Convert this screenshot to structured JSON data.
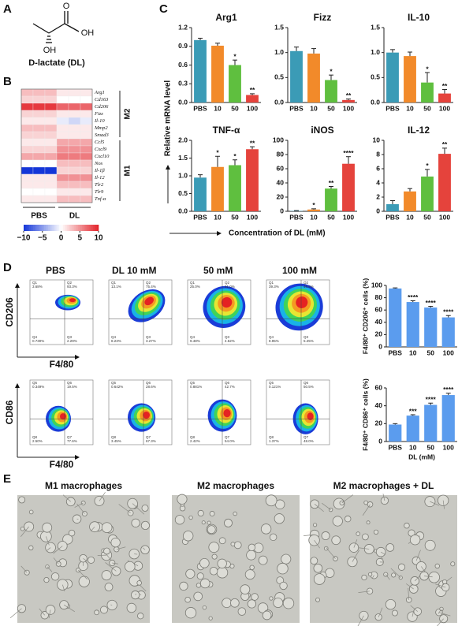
{
  "panel_labels": [
    "A",
    "B",
    "C",
    "D",
    "E"
  ],
  "panel_a": {
    "atoms": [
      "O",
      "OH",
      "OH"
    ],
    "caption": "D-lactate (DL)"
  },
  "panel_b": {
    "clim": [
      -10,
      10
    ],
    "cticks": [
      {
        "value": -10,
        "label": "−10"
      },
      {
        "value": -5,
        "label": "−5"
      },
      0,
      5,
      10
    ],
    "colors": {
      "low": "#1436d8",
      "mid": "#ffffff",
      "high": "#e3232a"
    },
    "columns": [
      "PBS",
      "DL"
    ],
    "groups": [
      {
        "name": "M2",
        "color": "#a8309a",
        "genes": [
          {
            "name": "Arg1",
            "values": [
              3,
              3,
              3,
              1,
              1,
              1
            ]
          },
          {
            "name": "Cd163",
            "values": [
              2,
              2,
              2,
              0,
              0,
              0
            ]
          },
          {
            "name": "Cd206",
            "values": [
              9,
              9,
              9,
              7,
              7,
              7
            ]
          },
          {
            "name": "Fizz",
            "values": [
              2,
              2,
              2,
              1,
              1,
              1
            ]
          },
          {
            "name": "Il-10",
            "values": [
              1,
              1,
              1,
              -1,
              -2,
              -1
            ]
          },
          {
            "name": "Mmp2",
            "values": [
              3,
              3,
              3,
              1,
              1,
              1
            ]
          },
          {
            "name": "Smad3",
            "values": [
              2,
              2,
              2,
              1,
              1,
              1
            ]
          }
        ]
      },
      {
        "name": "M1",
        "color": "#2e9a3a",
        "genes": [
          {
            "name": "Ccl5",
            "values": [
              1,
              1,
              1,
              4,
              4,
              4
            ]
          },
          {
            "name": "Cxcl9",
            "values": [
              2,
              2,
              2,
              5,
              5,
              5
            ]
          },
          {
            "name": "Cxcl10",
            "values": [
              4,
              4,
              4,
              6,
              6,
              6
            ]
          },
          {
            "name": "Nos",
            "values": [
              0,
              0,
              0,
              3,
              3,
              3
            ]
          },
          {
            "name": "Il-1β",
            "values": [
              -10,
              -10,
              -10,
              2,
              2,
              2
            ]
          },
          {
            "name": "Il-12",
            "values": [
              1,
              1,
              1,
              5,
              5,
              5
            ]
          },
          {
            "name": "Tlr2",
            "values": [
              1,
              1,
              1,
              3,
              3,
              3
            ]
          },
          {
            "name": "Tlr9",
            "values": [
              0,
              0,
              0,
              1,
              1,
              1
            ]
          },
          {
            "name": "Tnf-α",
            "values": [
              1,
              1,
              1,
              3,
              3,
              3
            ]
          }
        ]
      }
    ]
  },
  "panel_c": {
    "y_label": "Relative mRNA level",
    "x_label": "Concentration of DL (mM)"
  },
  "chart_data": [
    {
      "type": "bar",
      "title": "Arg1",
      "categories": [
        "PBS",
        "10",
        "50",
        "100"
      ],
      "colors": [
        "#3b9bb6",
        "#f28a2a",
        "#5fbf3f",
        "#e5433c"
      ],
      "values": [
        1.0,
        0.91,
        0.6,
        0.12
      ],
      "errors": [
        0.03,
        0.04,
        0.08,
        0.02
      ],
      "significance": [
        null,
        null,
        "*",
        "**"
      ],
      "ylim": [
        0,
        1.2
      ],
      "yticks": [
        {
          "value": 0,
          "label": "0.0"
        },
        0.3,
        0.6,
        0.9,
        1.2
      ]
    },
    {
      "type": "bar",
      "title": "Fizz",
      "categories": [
        "PBS",
        "10",
        "50",
        "100"
      ],
      "colors": [
        "#3b9bb6",
        "#f28a2a",
        "#5fbf3f",
        "#e5433c"
      ],
      "values": [
        1.03,
        0.98,
        0.45,
        0.05
      ],
      "errors": [
        0.08,
        0.1,
        0.1,
        0.02
      ],
      "significance": [
        null,
        null,
        "*",
        "**"
      ],
      "ylim": [
        0,
        1.5
      ],
      "yticks": [
        {
          "value": 0,
          "label": "0.0"
        },
        0.5,
        {
          "value": 1,
          "label": "1.0"
        },
        1.5
      ]
    },
    {
      "type": "bar",
      "title": "IL-10",
      "categories": [
        "PBS",
        "10",
        "50",
        "100"
      ],
      "colors": [
        "#3b9bb6",
        "#f28a2a",
        "#5fbf3f",
        "#e5433c"
      ],
      "values": [
        1.0,
        0.93,
        0.4,
        0.18
      ],
      "errors": [
        0.06,
        0.08,
        0.2,
        0.08
      ],
      "significance": [
        null,
        null,
        "*",
        "**"
      ],
      "ylim": [
        0,
        1.5
      ],
      "yticks": [
        {
          "value": 0,
          "label": "0.0"
        },
        0.5,
        {
          "value": 1,
          "label": "1.0"
        },
        1.5
      ]
    },
    {
      "type": "bar",
      "title": "TNF-α",
      "categories": [
        "PBS",
        "10",
        "50",
        "100"
      ],
      "colors": [
        "#3b9bb6",
        "#f28a2a",
        "#5fbf3f",
        "#e5433c"
      ],
      "values": [
        0.95,
        1.25,
        1.3,
        1.75
      ],
      "errors": [
        0.08,
        0.3,
        0.15,
        0.07
      ],
      "significance": [
        null,
        "*",
        "*",
        "**"
      ],
      "ylim": [
        0,
        2
      ],
      "yticks": [
        {
          "value": 0,
          "label": "0.0"
        },
        0.5,
        {
          "value": 1,
          "label": "1.0"
        },
        1.5,
        {
          "value": 2,
          "label": "2.0"
        }
      ]
    },
    {
      "type": "bar",
      "title": "iNOS",
      "categories": [
        "PBS",
        "10",
        "50",
        "100"
      ],
      "colors": [
        "#3b9bb6",
        "#f28a2a",
        "#5fbf3f",
        "#e5433c"
      ],
      "values": [
        0.5,
        2.5,
        32,
        67
      ],
      "errors": [
        0.5,
        1,
        3,
        10
      ],
      "significance": [
        null,
        "*",
        "**",
        "****"
      ],
      "ylim": [
        0,
        100
      ],
      "yticks": [
        0,
        20,
        40,
        60,
        80,
        100
      ]
    },
    {
      "type": "bar",
      "title": "IL-12",
      "categories": [
        "PBS",
        "10",
        "50",
        "100"
      ],
      "colors": [
        "#3b9bb6",
        "#f28a2a",
        "#5fbf3f",
        "#e5433c"
      ],
      "values": [
        1.0,
        2.8,
        4.9,
        8.1
      ],
      "errors": [
        0.5,
        0.4,
        1.0,
        0.8
      ],
      "significance": [
        null,
        null,
        "*",
        "**"
      ],
      "ylim": [
        0,
        10
      ],
      "yticks": [
        0,
        2,
        4,
        6,
        8,
        10
      ]
    },
    {
      "type": "bar",
      "y_label": "F4/80⁺ CD206⁺ cells (%)",
      "categories": [
        "PBS",
        "10",
        "50",
        "100"
      ],
      "color": "#5b9cee",
      "values": [
        95,
        73,
        64,
        48
      ],
      "errors": [
        1,
        2,
        2,
        3
      ],
      "significance": [
        null,
        "****",
        "****",
        "****"
      ],
      "ylim": [
        0,
        100
      ],
      "yticks": [
        0,
        20,
        40,
        60,
        80,
        100
      ]
    },
    {
      "type": "bar",
      "y_label": "F4/80⁺ CD86⁺ cells (%)",
      "x_label": "DL (mM)",
      "categories": [
        "PBS",
        "10",
        "50",
        "100"
      ],
      "color": "#5b9cee",
      "values": [
        19,
        29,
        41,
        52
      ],
      "errors": [
        1,
        1,
        2,
        2
      ],
      "significance": [
        null,
        "***",
        "****",
        "****"
      ],
      "ylim": [
        0,
        60
      ],
      "yticks": [
        0,
        20,
        40,
        60
      ]
    }
  ],
  "panel_d": {
    "columns": [
      "PBS",
      "DL  10 mM",
      "50 mM",
      "100 mM"
    ],
    "rows": [
      {
        "y_label": "CD206",
        "x_label": "F4/80",
        "plots": [
          {
            "quadrants": [
              [
                "Q1",
                "3.68%"
              ],
              [
                "Q2",
                "93.3%"
              ],
              [
                "Q4",
                "0.730%"
              ],
              [
                "Q3",
                "2.29%"
              ]
            ]
          },
          {
            "quadrants": [
              [
                "Q1",
                "13.1%"
              ],
              [
                "Q2",
                "75.4%"
              ],
              [
                "Q4",
                "8.23%"
              ],
              [
                "Q3",
                "3.27%"
              ]
            ]
          },
          {
            "quadrants": [
              [
                "Q1",
                "25.0%"
              ],
              [
                "Q2",
                "61.0%"
              ],
              [
                "Q4",
                "9.48%"
              ],
              [
                "Q3",
                "4.52%"
              ]
            ]
          },
          {
            "quadrants": [
              [
                "Q1",
                "39.3%"
              ],
              [
                "Q2",
                "46.5%"
              ],
              [
                "Q4",
                "8.95%"
              ],
              [
                "Q3",
                "5.25%"
              ]
            ]
          }
        ]
      },
      {
        "y_label": "CD86",
        "x_label": "F4/80",
        "plots": [
          {
            "quadrants": [
              [
                "Q5",
                "0.349%"
              ],
              [
                "Q6",
                "19.5%"
              ],
              [
                "Q8",
                "2.50%"
              ],
              [
                "Q7",
                "77.6%"
              ]
            ]
          },
          {
            "quadrants": [
              [
                "Q5",
                "0.642%"
              ],
              [
                "Q6",
                "28.6%"
              ],
              [
                "Q8",
                "3.45%"
              ],
              [
                "Q7",
                "67.3%"
              ]
            ]
          },
          {
            "quadrants": [
              [
                "Q5",
                "0.881%"
              ],
              [
                "Q6",
                "42.7%"
              ],
              [
                "Q8",
                "2.42%"
              ],
              [
                "Q7",
                "54.0%"
              ]
            ]
          },
          {
            "quadrants": [
              [
                "Q5",
                "0.121%"
              ],
              [
                "Q6",
                "50.5%"
              ],
              [
                "Q8",
                "1.37%"
              ],
              [
                "Q7",
                "48.0%"
              ]
            ]
          }
        ]
      }
    ]
  },
  "panel_e": {
    "titles": [
      "M1 macrophages",
      "M2 macrophages",
      "M2 macrophages + DL"
    ]
  }
}
